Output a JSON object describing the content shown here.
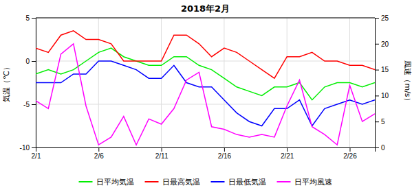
{
  "chart_data": {
    "type": "line",
    "title": "2018年2月",
    "x": [
      1,
      2,
      3,
      4,
      5,
      6,
      7,
      8,
      9,
      10,
      11,
      12,
      13,
      14,
      15,
      16,
      17,
      18,
      19,
      20,
      21,
      22,
      23,
      24,
      25,
      26,
      27,
      28
    ],
    "xlim": [
      1,
      28
    ],
    "xticks": [
      {
        "value": 1,
        "label": "2/1"
      },
      {
        "value": 6,
        "label": "2/6"
      },
      {
        "value": 11,
        "label": "2/11"
      },
      {
        "value": 16,
        "label": "2/16"
      },
      {
        "value": 21,
        "label": "2/21"
      },
      {
        "value": 26,
        "label": "2/26"
      }
    ],
    "ylim": [
      -10,
      5
    ],
    "yticks": [
      -10,
      -5,
      0,
      5
    ],
    "y2lim": [
      0,
      25
    ],
    "y2ticks": [
      0,
      5,
      10,
      15,
      20,
      25
    ],
    "ylabel": "気温（℃）",
    "y2label": "風速（m/s）",
    "grid": true,
    "legend": "bottom",
    "series": [
      {
        "name": "日平均気温",
        "color": "#00ee00",
        "values": [
          -1.5,
          -1.0,
          -1.5,
          -1.0,
          0.0,
          1.0,
          1.5,
          0.5,
          0.0,
          -0.5,
          -0.5,
          0.5,
          0.5,
          -0.5,
          -1.0,
          -2.0,
          -3.0,
          -3.5,
          -4.0,
          -3.0,
          -3.0,
          -2.5,
          -4.5,
          -3.0,
          -2.5,
          -2.5,
          -3.0,
          -2.5
        ]
      },
      {
        "name": "日最高気温",
        "color": "#ff0000",
        "values": [
          1.5,
          1.0,
          3.0,
          3.5,
          2.5,
          2.5,
          2.0,
          0.0,
          0.0,
          0.0,
          0.0,
          3.0,
          3.0,
          2.0,
          0.5,
          1.5,
          1.0,
          0.0,
          -1.0,
          -2.0,
          0.5,
          0.5,
          1.0,
          0.0,
          0.0,
          -0.5,
          -0.5,
          -1.0
        ]
      },
      {
        "name": "日最低気温",
        "color": "#0000ff",
        "values": [
          -2.5,
          -2.5,
          -2.5,
          -1.5,
          -1.5,
          0.0,
          0.0,
          -0.5,
          -1.0,
          -2.0,
          -2.0,
          -0.5,
          -2.5,
          -3.0,
          -3.0,
          -4.5,
          -6.0,
          -7.0,
          -7.5,
          -5.5,
          -5.5,
          -4.5,
          -7.5,
          -5.5,
          -5.0,
          -4.5,
          -5.0,
          -4.5
        ]
      },
      {
        "name": "日平均風速",
        "color": "#ff00ff",
        "axis": "y2",
        "values": [
          9.0,
          7.5,
          18.0,
          20.0,
          8.0,
          0.5,
          2.0,
          6.0,
          0.5,
          5.5,
          4.5,
          7.5,
          13.0,
          14.5,
          4.0,
          3.5,
          2.5,
          2.0,
          2.5,
          2.0,
          8.0,
          13.0,
          4.0,
          2.5,
          0.5,
          12.0,
          5.0,
          6.5
        ]
      }
    ]
  }
}
